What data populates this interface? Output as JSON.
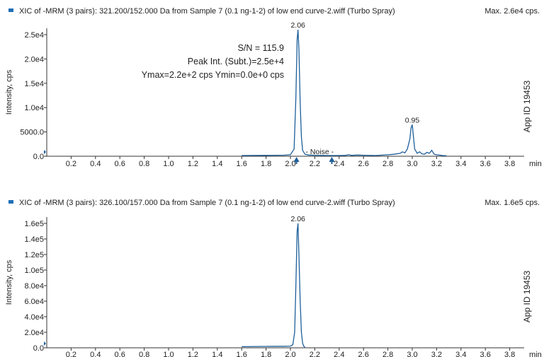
{
  "chart_data": [
    {
      "type": "line",
      "title": "XIC of -MRM (3 pairs): 321.200/152.000 Da from Sample 7 (0.1 ng-1-2) of low end curve-2.wiff (Turbo Spray)",
      "max_label": "Max. 2.6e4 cps.",
      "ylabel": "Intensity, cps",
      "xunit": "min",
      "xlim": [
        0.0,
        4.0
      ],
      "ylim": [
        0,
        26000
      ],
      "xticks": [
        0.2,
        0.4,
        0.6,
        0.8,
        1.0,
        1.2,
        1.4,
        1.6,
        1.8,
        2.0,
        2.2,
        2.4,
        2.6,
        2.8,
        3.0,
        3.2,
        3.4,
        3.6,
        3.8
      ],
      "xtick_labels": [
        "0.2",
        "0.4",
        "0.6",
        "0.8",
        "1.0",
        "1.2",
        "1.4",
        "1.6",
        "1.8",
        "2.0",
        "2.2",
        "2.4",
        "2.6",
        "2.8",
        "3.0",
        "3.2",
        "3.4",
        "3.6",
        "3.8"
      ],
      "yticks": [
        0,
        5000,
        10000,
        15000,
        20000,
        25000
      ],
      "ytick_labels": [
        "0.0",
        "5000.0",
        "1.0e4",
        "1.5e4",
        "2.0e4",
        "2.5e4"
      ],
      "series": [
        {
          "x": [
            1.6,
            1.8,
            1.95,
            2.0,
            2.03,
            2.045,
            2.055,
            2.062,
            2.07,
            2.08,
            2.09,
            2.1,
            2.12,
            2.15,
            2.2,
            2.3,
            2.4,
            2.45,
            2.48,
            2.5,
            2.55,
            2.6,
            2.7,
            2.8,
            2.85,
            2.9,
            2.92,
            2.94,
            2.96,
            2.98,
            2.99,
            3.0,
            3.01,
            3.02,
            3.04,
            3.06,
            3.08,
            3.1,
            3.12,
            3.14,
            3.16,
            3.18,
            3.2,
            3.25,
            3.28
          ],
          "y": [
            150,
            180,
            220,
            300,
            1500,
            12000,
            24000,
            26000,
            22000,
            11000,
            4000,
            1200,
            400,
            250,
            200,
            150,
            150,
            180,
            300,
            180,
            250,
            200,
            150,
            300,
            400,
            600,
            900,
            700,
            1500,
            3500,
            5800,
            6500,
            4000,
            1500,
            600,
            900,
            500,
            400,
            800,
            600,
            1200,
            400,
            300,
            150,
            100
          ]
        }
      ],
      "peak_labels": [
        {
          "x": 2.062,
          "y": 26000,
          "text": "2.06"
        },
        {
          "x": 3.0,
          "y": 6500,
          "text": "0.95"
        }
      ],
      "annotations": [
        "S/N = 115.9",
        "Peak Int. (Subt.)=2.5e+4",
        "Ymax=2.2e+2 cps  Ymin=0.0e+0 cps"
      ],
      "noise_label": "- Noise -",
      "noise_markers_x": [
        2.05,
        2.34
      ],
      "watermark": "App ID 19453"
    },
    {
      "type": "line",
      "title": "XIC of -MRM (3 pairs): 326.100/157.000 Da from Sample 7 (0.1 ng-1-2) of low end curve-2.wiff (Turbo Spray)",
      "max_label": "Max. 1.6e5 cps.",
      "ylabel": "Intensity, cps",
      "xunit": "min",
      "xlim": [
        0.0,
        4.0
      ],
      "ylim": [
        0,
        170000
      ],
      "xticks": [
        0.2,
        0.4,
        0.6,
        0.8,
        1.0,
        1.2,
        1.4,
        1.6,
        1.8,
        2.0,
        2.2,
        2.4,
        2.6,
        2.8,
        3.0,
        3.2,
        3.4,
        3.6,
        3.8
      ],
      "xtick_labels": [
        "0.2",
        "0.4",
        "0.6",
        "0.8",
        "1.0",
        "1.2",
        "1.4",
        "1.6",
        "1.8",
        "2.0",
        "2.2",
        "2.4",
        "2.6",
        "2.8",
        "3.0",
        "3.2",
        "3.4",
        "3.6",
        "3.8"
      ],
      "yticks": [
        0,
        20000,
        40000,
        60000,
        80000,
        100000,
        120000,
        140000,
        160000
      ],
      "ytick_labels": [
        "0.0",
        "2.0e4",
        "4.0e4",
        "6.0e4",
        "8.0e4",
        "1.0e5",
        "1.2e5",
        "1.4e5",
        "1.6e5"
      ],
      "series": [
        {
          "x": [
            1.6,
            1.8,
            1.95,
            2.0,
            2.02,
            2.035,
            2.045,
            2.055,
            2.062,
            2.07,
            2.08,
            2.09,
            2.1,
            2.11,
            2.12
          ],
          "y": [
            1500,
            1800,
            2000,
            2200,
            4000,
            20000,
            80000,
            150000,
            160000,
            120000,
            60000,
            20000,
            6000,
            2000,
            800
          ]
        }
      ],
      "peak_labels": [
        {
          "x": 2.062,
          "y": 160000,
          "text": "2.06"
        }
      ],
      "watermark": "App ID 19453"
    }
  ]
}
